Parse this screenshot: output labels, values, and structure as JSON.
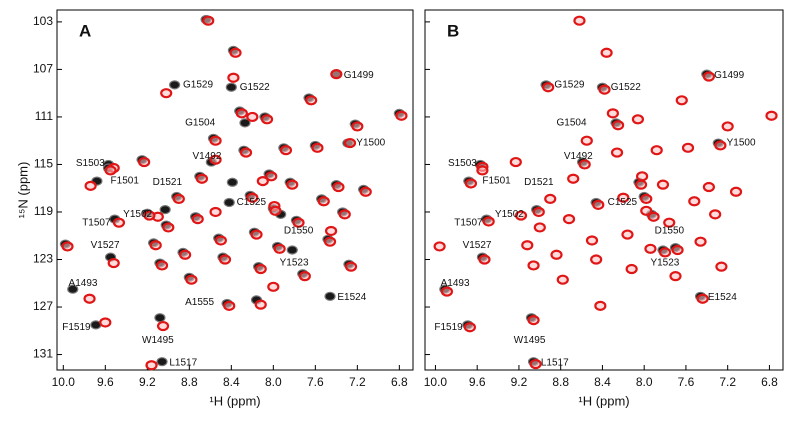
{
  "chart_data": [
    {
      "type": "scatter",
      "title": "A",
      "x_label": "¹H (ppm)",
      "y_label": "¹⁵N (ppm)",
      "xlim": [
        6.67,
        10.06
      ],
      "ylim": [
        102,
        132.3
      ],
      "x_inverted": true,
      "y_inverted": true,
      "xticks": [
        {
          "value": 10,
          "label": "10.0"
        },
        9.6,
        9.2,
        8.8,
        8.4,
        {
          "value": 8,
          "label": "8.0"
        },
        7.6,
        7.2,
        6.8
      ],
      "yticks": [
        103,
        107,
        111,
        115,
        119,
        123,
        127,
        131
      ],
      "series": [
        {
          "name": "black",
          "color": "#1a1a1a",
          "x": [
            8.94,
            8.4,
            7.4,
            8.27,
            7.29,
            9.57,
            9.68,
            8.59,
            8.39,
            8.42,
            9.03,
            9.51,
            7.93,
            9.55,
            7.82,
            9.91,
            7.46,
            8.16,
            9.69,
            9.08,
            9.06,
            9.98,
            9.57,
            9.25,
            9.2,
            9.14,
            9.08,
            9.02,
            8.92,
            8.86,
            8.8,
            8.74,
            8.7,
            8.64,
            8.57,
            8.52,
            8.48,
            8.44,
            8.38,
            8.32,
            8.28,
            8.22,
            8.18,
            8.14,
            8.08,
            8.04,
            8.0,
            7.96,
            7.9,
            7.84,
            7.78,
            7.72,
            7.66,
            7.6,
            7.54,
            7.48,
            7.4,
            7.34,
            7.28,
            7.22,
            7.14,
            6.8
          ],
          "y": [
            108.3,
            108.5,
            107.4,
            111.5,
            113.2,
            115.0,
            116.4,
            114.8,
            116.5,
            118.2,
            118.8,
            119.6,
            119.2,
            122.8,
            122.2,
            125.5,
            126.1,
            126.4,
            128.5,
            127.9,
            131.6,
            121.7,
            115.3,
            114.6,
            119.1,
            121.6,
            123.3,
            120.1,
            117.7,
            122.4,
            124.5,
            119.4,
            116.0,
            102.8,
            112.8,
            121.2,
            122.8,
            126.7,
            105.4,
            110.5,
            113.8,
            117.6,
            120.7,
            123.6,
            111.0,
            115.8,
            118.7,
            121.9,
            113.6,
            116.5,
            119.7,
            124.2,
            109.4,
            113.4,
            117.9,
            121.3,
            116.7,
            119.0,
            123.4,
            111.6,
            117.1,
            110.7
          ]
        },
        {
          "name": "red",
          "color": "#e01515",
          "x": [
            9.02,
            8.38,
            7.4,
            8.2,
            7.27,
            9.52,
            9.74,
            8.55,
            8.1,
            8.55,
            9.1,
            9.47,
            7.99,
            9.52,
            7.45,
            9.75,
            8.0,
            8.12,
            9.6,
            9.05,
            9.16,
            9.96,
            9.55,
            9.23,
            9.18,
            9.12,
            9.06,
            9.0,
            8.9,
            8.84,
            8.78,
            8.72,
            8.68,
            8.62,
            8.55,
            8.5,
            8.46,
            8.42,
            8.36,
            8.3,
            8.26,
            8.2,
            8.16,
            8.12,
            8.06,
            8.02,
            7.98,
            7.94,
            7.88,
            7.82,
            7.76,
            7.7,
            7.64,
            7.58,
            7.52,
            7.46,
            7.38,
            7.32,
            7.26,
            7.2,
            7.12,
            6.78
          ],
          "y": [
            109.0,
            107.7,
            107.4,
            111.0,
            113.2,
            115.3,
            116.8,
            114.6,
            116.4,
            119.0,
            119.4,
            119.9,
            118.5,
            123.3,
            120.6,
            126.3,
            125.3,
            126.8,
            128.3,
            128.6,
            131.9,
            121.9,
            115.5,
            114.8,
            119.3,
            121.8,
            123.5,
            120.3,
            117.9,
            122.6,
            124.7,
            119.6,
            116.2,
            102.9,
            113.0,
            121.4,
            123.0,
            126.9,
            105.6,
            110.7,
            114.0,
            117.8,
            120.9,
            123.8,
            111.2,
            116.0,
            118.9,
            122.1,
            113.8,
            116.7,
            119.9,
            124.4,
            109.6,
            113.6,
            118.1,
            121.5,
            116.9,
            119.2,
            123.6,
            111.8,
            117.3,
            110.9
          ]
        }
      ],
      "annotations": [
        {
          "text": "G1529",
          "x": 8.86,
          "y": 108.3
        },
        {
          "text": "G1522",
          "x": 8.32,
          "y": 108.5
        },
        {
          "text": "G1499",
          "x": 7.33,
          "y": 107.5
        },
        {
          "text": "G1504",
          "x": 8.84,
          "y": 111.5
        },
        {
          "text": "Y1500",
          "x": 7.21,
          "y": 113.2
        },
        {
          "text": "S1503",
          "x": 9.88,
          "y": 114.9
        },
        {
          "text": "F1501",
          "x": 9.55,
          "y": 116.4
        },
        {
          "text": "V1492",
          "x": 8.77,
          "y": 114.3
        },
        {
          "text": "D1521",
          "x": 9.15,
          "y": 116.5
        },
        {
          "text": "C1525",
          "x": 8.35,
          "y": 118.2
        },
        {
          "text": "Y1502",
          "x": 9.43,
          "y": 119.2
        },
        {
          "text": "T1507",
          "x": 9.82,
          "y": 119.9
        },
        {
          "text": "D1550",
          "x": 7.9,
          "y": 120.6
        },
        {
          "text": "V1527",
          "x": 9.74,
          "y": 121.8
        },
        {
          "text": "Y1523",
          "x": 7.94,
          "y": 123.3
        },
        {
          "text": "A1493",
          "x": 9.95,
          "y": 125
        },
        {
          "text": "E1524",
          "x": 7.39,
          "y": 126.2
        },
        {
          "text": "A1555",
          "x": 8.84,
          "y": 126.6
        },
        {
          "text": "F1519",
          "x": 10.01,
          "y": 128.7
        },
        {
          "text": "W1495",
          "x": 9.25,
          "y": 129.8
        },
        {
          "text": "L1517",
          "x": 8.99,
          "y": 131.7
        }
      ]
    },
    {
      "type": "scatter",
      "title": "B",
      "x_label": "¹H (ppm)",
      "xlim": [
        6.67,
        10.1
      ],
      "ylim": [
        102,
        132.3
      ],
      "x_inverted": true,
      "y_inverted": true,
      "xticks": [
        {
          "value": 10,
          "label": "10.0"
        },
        9.6,
        9.2,
        8.8,
        8.4,
        {
          "value": 8,
          "label": "8.0"
        },
        7.6,
        7.2,
        6.8
      ],
      "yticks": [
        103,
        107,
        111,
        115,
        119,
        123,
        127,
        131
      ],
      "series": [
        {
          "name": "black",
          "color": "#1a1a1a",
          "x": [
            8.94,
            8.4,
            7.4,
            8.27,
            7.29,
            9.57,
            9.68,
            8.59,
            8.05,
            8.46,
            9.03,
            9.51,
            7.93,
            9.55,
            7.82,
            9.91,
            7.46,
            9.69,
            9.08,
            9.06,
            8.0,
            7.7
          ],
          "y": [
            108.3,
            108.5,
            107.4,
            111.5,
            113.2,
            115.0,
            116.4,
            114.8,
            116.5,
            118.2,
            118.8,
            119.6,
            119.2,
            122.8,
            122.2,
            125.5,
            126.1,
            128.5,
            127.9,
            131.6,
            117.7,
            122.0
          ]
        },
        {
          "name": "red",
          "color": "#e01515",
          "x": [
            8.92,
            8.38,
            7.38,
            8.25,
            7.27,
            9.55,
            9.66,
            8.57,
            8.03,
            8.44,
            9.01,
            9.49,
            7.91,
            9.53,
            7.8,
            9.89,
            7.44,
            9.67,
            9.06,
            9.04,
            7.98,
            7.68,
            9.96,
            9.55,
            9.23,
            9.18,
            9.12,
            9.06,
            9.0,
            8.9,
            8.84,
            8.78,
            8.72,
            8.68,
            8.62,
            8.55,
            8.5,
            8.46,
            8.42,
            8.36,
            8.3,
            8.26,
            8.2,
            8.16,
            8.12,
            8.06,
            8.02,
            7.98,
            7.94,
            7.88,
            7.82,
            7.76,
            7.7,
            7.64,
            7.58,
            7.52,
            7.46,
            7.38,
            7.32,
            7.26,
            7.2,
            7.12,
            6.78
          ],
          "y": [
            108.5,
            108.7,
            107.6,
            111.7,
            113.4,
            115.2,
            116.6,
            115.0,
            116.7,
            118.4,
            119.0,
            119.8,
            119.4,
            123.0,
            122.4,
            125.7,
            126.3,
            128.7,
            128.1,
            131.8,
            117.9,
            122.2,
            121.9,
            115.5,
            114.8,
            119.3,
            121.8,
            123.5,
            120.3,
            117.9,
            122.6,
            124.7,
            119.6,
            116.2,
            102.9,
            113.0,
            121.4,
            123.0,
            126.9,
            105.6,
            110.7,
            114.0,
            117.8,
            120.9,
            123.8,
            111.2,
            116.0,
            118.9,
            122.1,
            113.8,
            116.7,
            119.9,
            124.4,
            109.6,
            113.6,
            118.1,
            121.5,
            116.9,
            119.2,
            123.6,
            111.8,
            117.3,
            110.9
          ]
        }
      ],
      "annotations": [
        {
          "text": "G1529",
          "x": 8.86,
          "y": 108.3
        },
        {
          "text": "G1522",
          "x": 8.32,
          "y": 108.5
        },
        {
          "text": "G1499",
          "x": 7.33,
          "y": 107.5
        },
        {
          "text": "G1504",
          "x": 8.84,
          "y": 111.5
        },
        {
          "text": "Y1500",
          "x": 7.21,
          "y": 113.2
        },
        {
          "text": "S1503",
          "x": 9.88,
          "y": 114.9
        },
        {
          "text": "F1501",
          "x": 9.55,
          "y": 116.4
        },
        {
          "text": "V1492",
          "x": 8.77,
          "y": 114.3
        },
        {
          "text": "D1521",
          "x": 9.15,
          "y": 116.5
        },
        {
          "text": "C1525",
          "x": 8.35,
          "y": 118.2
        },
        {
          "text": "Y1502",
          "x": 9.43,
          "y": 119.2
        },
        {
          "text": "T1507",
          "x": 9.82,
          "y": 119.9
        },
        {
          "text": "D1550",
          "x": 7.9,
          "y": 120.6
        },
        {
          "text": "V1527",
          "x": 9.74,
          "y": 121.8
        },
        {
          "text": "Y1523",
          "x": 7.94,
          "y": 123.3
        },
        {
          "text": "A1493",
          "x": 9.95,
          "y": 125
        },
        {
          "text": "E1524",
          "x": 7.39,
          "y": 126.2
        },
        {
          "text": "F1519",
          "x": 10.01,
          "y": 128.7
        },
        {
          "text": "W1495",
          "x": 9.25,
          "y": 129.8
        },
        {
          "text": "L1517",
          "x": 8.99,
          "y": 131.7
        }
      ]
    }
  ]
}
